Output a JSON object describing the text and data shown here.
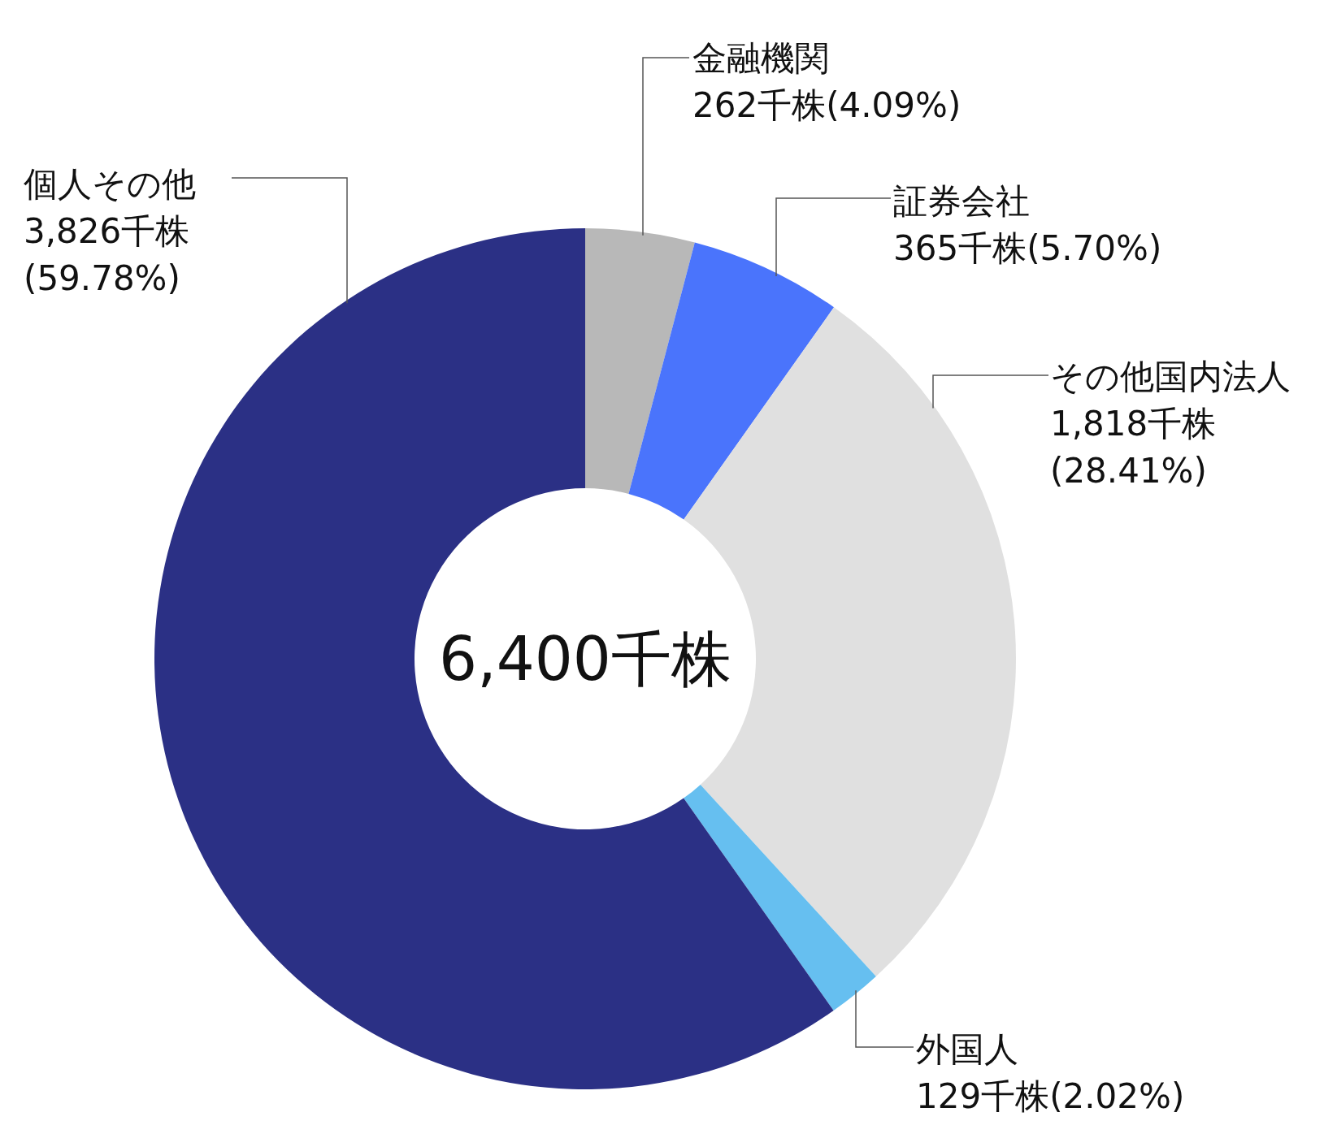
{
  "chart_data": {
    "type": "donut",
    "categories": [
      "金融機関",
      "証券会社",
      "その他国内法人",
      "外国人",
      "個人その他"
    ],
    "values": [
      262,
      365,
      1818,
      129,
      3826
    ],
    "colors": [
      "#b8b8b8",
      "#4a74fc",
      "#e0e0e0",
      "#66bff0",
      "#2b3085"
    ],
    "value_labels": [
      "262千株(4.09%)",
      "365千株(5.70%)",
      "1,818千株(28.41%)",
      "129千株(2.02%)",
      "3,826千株(59.78%)"
    ],
    "annotations": [
      "6,400千株"
    ]
  }
}
